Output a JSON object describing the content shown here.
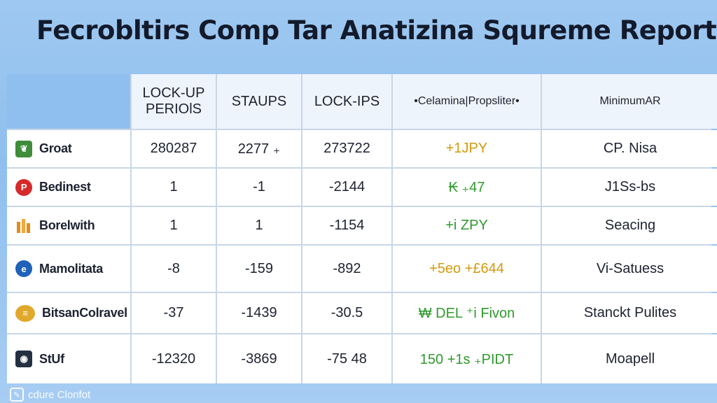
{
  "title": "Fecrobltirs Comp Tar Anatizina Squreme Reports",
  "headers": [
    "",
    "LOCK-UP PERIOlS",
    "STAUPS",
    "LOCK-IPS",
    "•Celamina|Propsliter•",
    "MinimumAR"
  ],
  "rows": [
    {
      "name": "Groat",
      "icon": "leaf-square-icon",
      "c1": "280287",
      "c2": "2277 ₊",
      "c3": "273722",
      "c4": "+1JPY",
      "c4_color": "#d19a0c",
      "c5": "CP. Nisa"
    },
    {
      "name": "Bedinest",
      "icon": "pin-circle-icon",
      "c1": "1",
      "c2": "-1",
      "c3": "-2144",
      "c4": "₭ ₊47",
      "c4_color": "#2f9a2d",
      "c5": "J1Ss-bs"
    },
    {
      "name": "Borelwith",
      "icon": "bars-icon",
      "c1": "1",
      "c2": "1",
      "c3": "-1154",
      "c4": "+i ZPY",
      "c4_color": "#2f9a2d",
      "c5": "Seacing"
    },
    {
      "name": "Mamolitata",
      "icon": "globe-icon",
      "c1": "-8",
      "c2": "-159",
      "c3": "-892",
      "c4": "+5eo +£644",
      "c4_color": "#d19a0c",
      "c5": "Vi-Satuess"
    },
    {
      "name": "BitsanColravel",
      "icon": "coin-icon",
      "c1": "-37",
      "c2": "-1439",
      "c3": "-30.5",
      "c4": "₩ DEL ⁺i Fivon",
      "c4_color": "#2f9a2d",
      "c5": "Stanckt Pulites"
    },
    {
      "name": "StUf",
      "icon": "dark-square-icon",
      "c1": "-12320",
      "c2": "-3869",
      "c3": "-75 48",
      "c4": "150 +1s ₊PIDT",
      "c4_color": "#2f9a2d",
      "c5": "Moapell"
    }
  ],
  "footer": {
    "text": "cdure Clonfot",
    "icon": "brand-logo-icon"
  }
}
